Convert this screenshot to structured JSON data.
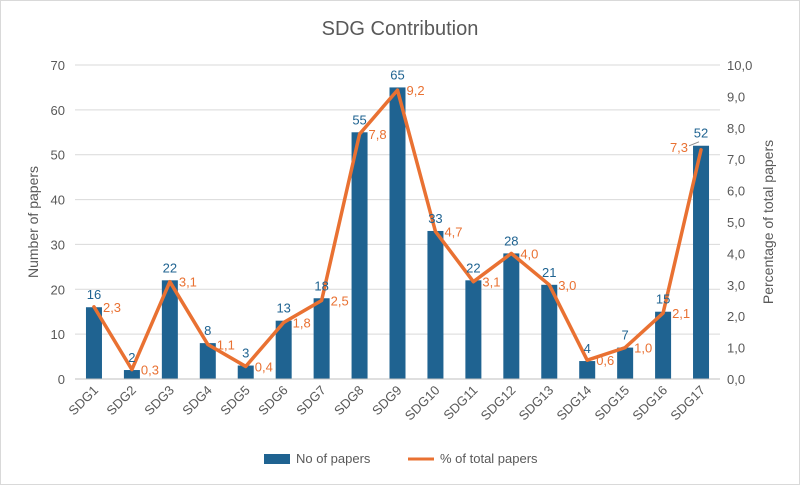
{
  "chart_data": {
    "type": "bar",
    "title": "SDG Contribution",
    "categories": [
      "SDG1",
      "SDG2",
      "SDG3",
      "SDG4",
      "SDG5",
      "SDG6",
      "SDG7",
      "SDG8",
      "SDG9",
      "SDG10",
      "SDG11",
      "SDG12",
      "SDG13",
      "SDG14",
      "SDG15",
      "SDG16",
      "SDG17"
    ],
    "series": [
      {
        "name": "No of papers",
        "type": "bar",
        "axis": "left",
        "color": "#1f6391",
        "values": [
          16,
          2,
          22,
          8,
          3,
          13,
          18,
          55,
          65,
          33,
          22,
          28,
          21,
          4,
          7,
          15,
          52
        ]
      },
      {
        "name": "% of total papers",
        "type": "line",
        "axis": "right",
        "color": "#e97132",
        "values": [
          2.3,
          0.3,
          3.1,
          1.1,
          0.4,
          1.8,
          2.5,
          7.8,
          9.2,
          4.7,
          3.1,
          4.0,
          3.0,
          0.6,
          1.0,
          2.1,
          7.3
        ],
        "labels": [
          "2,3",
          "0,3",
          "3,1",
          "1,1",
          "0,4",
          "1,8",
          "2,5",
          "7,8",
          "9,2",
          "4,7",
          "3,1",
          "4,0",
          "3,0",
          "0,6",
          "1,0",
          "2,1",
          "7,3"
        ]
      }
    ],
    "ylabel": "Number of papers",
    "ylim": [
      0,
      70
    ],
    "yticks": [
      0,
      10,
      20,
      30,
      40,
      50,
      60,
      70
    ],
    "y2label": "Percentage of total papers",
    "y2lim": [
      0,
      10
    ],
    "y2ticks": [
      "0,0",
      "1,0",
      "2,0",
      "3,0",
      "4,0",
      "5,0",
      "6,0",
      "7,0",
      "8,0",
      "9,0",
      "10,0"
    ],
    "grid": true,
    "legend": "bottom"
  }
}
